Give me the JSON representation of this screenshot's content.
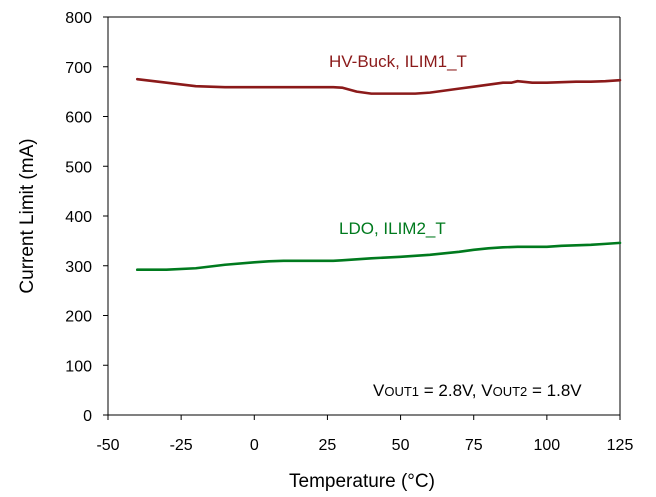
{
  "chart_data": {
    "type": "line",
    "xlabel": "Temperature (°C)",
    "ylabel": "Current Limit (mA)",
    "xlim": [
      -50,
      125
    ],
    "ylim": [
      0,
      800
    ],
    "xticks": [
      -50,
      -25,
      0,
      25,
      50,
      75,
      100,
      125
    ],
    "yticks": [
      0,
      100,
      200,
      300,
      400,
      500,
      600,
      700,
      800
    ],
    "grid": false,
    "series": [
      {
        "name": "HV-Buck, ILIM1_T",
        "color": "#8B1A1A",
        "x": [
          -40,
          -30,
          -20,
          -10,
          0,
          10,
          20,
          27,
          30,
          35,
          40,
          45,
          50,
          55,
          60,
          65,
          70,
          75,
          80,
          85,
          88,
          90,
          95,
          100,
          105,
          110,
          115,
          120,
          125
        ],
        "y": [
          675,
          668,
          661,
          659,
          659,
          659,
          659,
          659,
          658,
          650,
          646,
          646,
          646,
          646,
          648,
          652,
          656,
          660,
          664,
          668,
          668,
          671,
          668,
          668,
          669,
          670,
          670,
          671,
          673
        ]
      },
      {
        "name": "LDO, ILIM2_T",
        "color": "#007A1E",
        "x": [
          -40,
          -30,
          -20,
          -10,
          0,
          5,
          10,
          20,
          27,
          30,
          35,
          40,
          50,
          60,
          65,
          70,
          75,
          80,
          85,
          90,
          100,
          105,
          110,
          115,
          120,
          125
        ],
        "y": [
          292,
          292,
          295,
          302,
          307,
          309,
          310,
          310,
          310,
          311,
          313,
          315,
          318,
          322,
          325,
          328,
          332,
          335,
          337,
          338,
          338,
          340,
          341,
          342,
          344,
          346
        ]
      }
    ],
    "annotation": {
      "v1": "V",
      "s1": "OUT1",
      "t1": " = 2.8V, V",
      "s2": "OUT2",
      "t2": " = 1.8V"
    }
  }
}
